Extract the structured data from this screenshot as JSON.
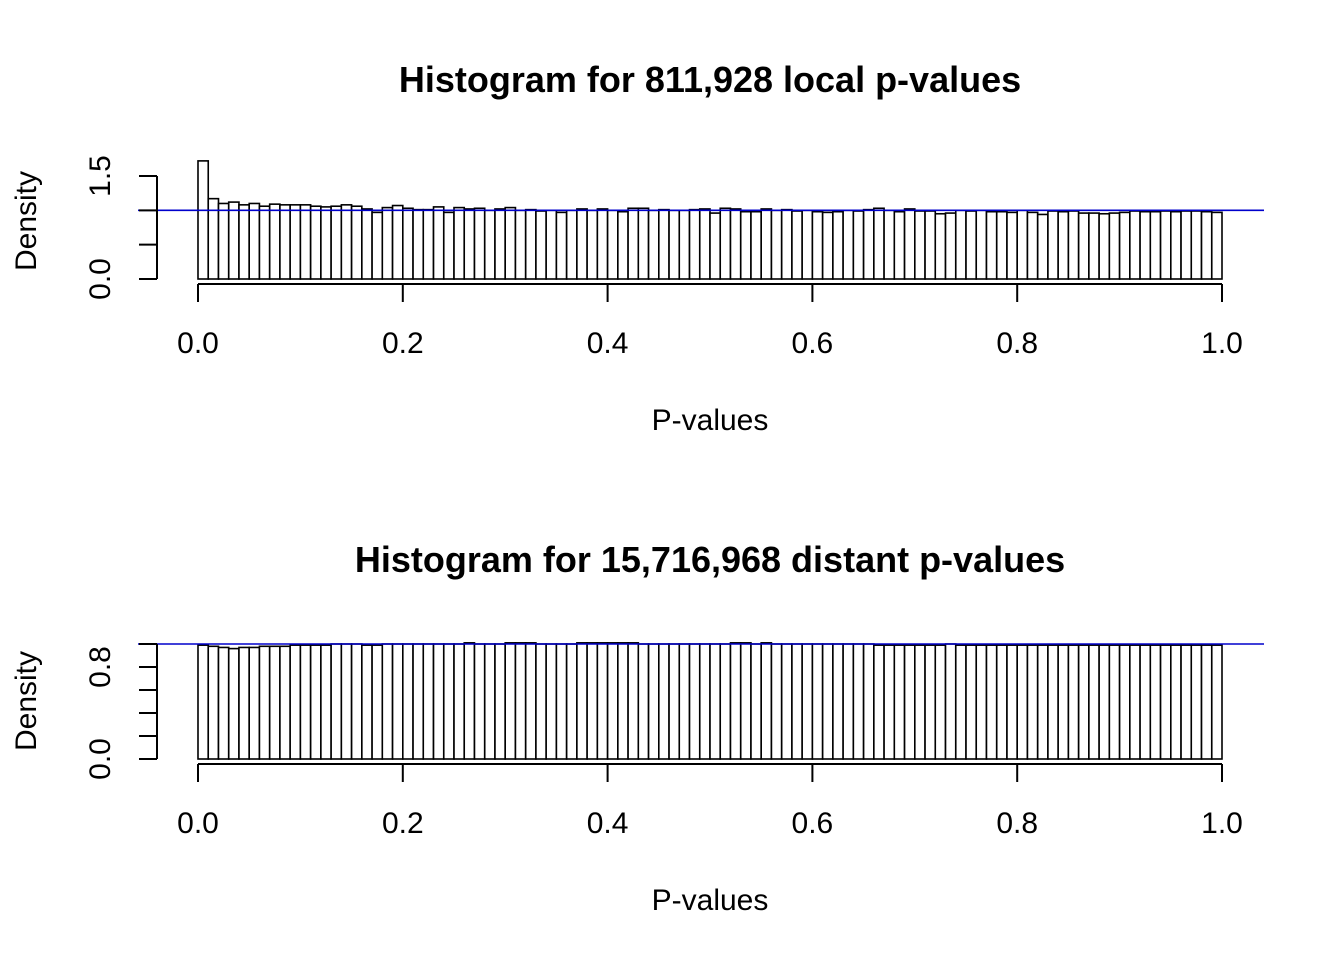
{
  "chart_data": [
    {
      "type": "bar",
      "title": "Histogram for 811,928 local p-values",
      "xlabel": "P-values",
      "ylabel": "Density",
      "xlim": [
        0.0,
        1.0
      ],
      "ylim": [
        0.0,
        1.5
      ],
      "x_ticks": [
        "0.0",
        "0.2",
        "0.4",
        "0.6",
        "0.8",
        "1.0"
      ],
      "y_ticks": [
        "0.0",
        "1.5"
      ],
      "bin_width": 0.01,
      "reference_line": {
        "y": 1.0,
        "color": "#0000cc"
      },
      "values": [
        1.72,
        1.17,
        1.1,
        1.12,
        1.08,
        1.1,
        1.06,
        1.09,
        1.08,
        1.08,
        1.08,
        1.06,
        1.05,
        1.06,
        1.08,
        1.06,
        1.02,
        0.97,
        1.04,
        1.07,
        1.03,
        1.01,
        1.01,
        1.05,
        0.97,
        1.04,
        1.02,
        1.03,
        1.0,
        1.02,
        1.04,
        1.0,
        1.01,
        0.99,
        1.0,
        0.97,
        1.0,
        1.02,
        1.0,
        1.02,
        1.0,
        0.98,
        1.03,
        1.03,
        1.0,
        1.01,
        1.0,
        1.0,
        1.01,
        1.02,
        0.96,
        1.03,
        1.02,
        0.98,
        0.98,
        1.02,
        1.0,
        1.01,
        0.99,
        1.0,
        0.98,
        0.97,
        0.98,
        1.0,
        0.99,
        1.01,
        1.03,
        1.0,
        0.98,
        1.02,
        0.99,
        0.99,
        0.95,
        0.96,
        1.0,
        0.99,
        1.0,
        0.98,
        0.98,
        0.97,
        1.0,
        0.97,
        0.94,
        0.99,
        0.98,
        0.99,
        0.96,
        0.96,
        0.95,
        0.96,
        0.97,
        0.99,
        0.98,
        0.98,
        0.99,
        0.98,
        0.99,
        0.99,
        0.98,
        0.97
      ]
    },
    {
      "type": "bar",
      "title": "Histogram for 15,716,968 distant p-values",
      "xlabel": "P-values",
      "ylabel": "Density",
      "xlim": [
        0.0,
        1.0
      ],
      "ylim": [
        0.0,
        1.0
      ],
      "x_ticks": [
        "0.0",
        "0.2",
        "0.4",
        "0.6",
        "0.8",
        "1.0"
      ],
      "y_ticks": [
        "0.0",
        "0.8"
      ],
      "bin_width": 0.01,
      "reference_line": {
        "y": 1.0,
        "color": "#0000cc"
      },
      "values": [
        0.99,
        0.98,
        0.97,
        0.96,
        0.97,
        0.97,
        0.98,
        0.98,
        0.98,
        0.99,
        0.99,
        0.99,
        0.99,
        1.0,
        1.0,
        1.0,
        0.99,
        0.99,
        1.0,
        1.0,
        1.0,
        1.0,
        1.0,
        1.0,
        1.0,
        1.0,
        1.01,
        1.0,
        1.0,
        1.0,
        1.01,
        1.01,
        1.01,
        1.0,
        1.0,
        1.0,
        1.0,
        1.01,
        1.01,
        1.01,
        1.01,
        1.01,
        1.01,
        1.0,
        1.0,
        1.0,
        1.0,
        1.0,
        1.0,
        1.0,
        1.0,
        1.0,
        1.01,
        1.01,
        1.0,
        1.01,
        1.0,
        1.0,
        1.0,
        1.0,
        1.0,
        1.0,
        1.0,
        1.0,
        1.0,
        1.0,
        0.99,
        0.99,
        0.99,
        0.99,
        0.99,
        0.99,
        0.99,
        1.0,
        0.99,
        0.99,
        0.99,
        0.99,
        0.99,
        0.99,
        0.99,
        0.99,
        0.99,
        0.99,
        0.99,
        0.99,
        0.99,
        0.99,
        0.99,
        0.99,
        0.99,
        0.99,
        0.99,
        0.99,
        0.99,
        0.99,
        0.99,
        0.99,
        0.99,
        0.99
      ]
    }
  ]
}
